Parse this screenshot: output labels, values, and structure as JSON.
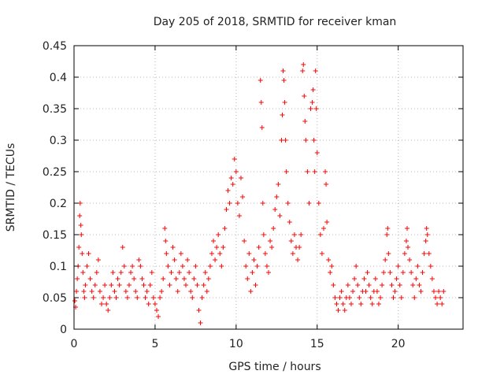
{
  "chart_data": {
    "type": "scatter",
    "title": "Day 205 of 2018, SRMTID for receiver kman",
    "xlabel": "GPS time / hours",
    "ylabel": "SRMTID / TECUs",
    "xlim": [
      0,
      24
    ],
    "ylim": [
      0,
      0.45
    ],
    "x_ticks": [
      0,
      5,
      10,
      15,
      20
    ],
    "x_tick_labels": [
      "0",
      "5",
      "10",
      "15",
      "20"
    ],
    "y_ticks": [
      0,
      0.05,
      0.1,
      0.15,
      0.2,
      0.25,
      0.3,
      0.35,
      0.4,
      0.45
    ],
    "y_tick_labels": [
      "0",
      "0.05",
      "0.1",
      "0.15",
      "0.2",
      "0.25",
      "0.3",
      "0.35",
      "0.4",
      "0.45"
    ],
    "grid": true,
    "marker": "+",
    "series": [
      {
        "name": "SRMTID",
        "color": "#ff0000",
        "points": [
          [
            0.05,
            0.045
          ],
          [
            0.1,
            0.035
          ],
          [
            0.15,
            0.06
          ],
          [
            0.2,
            0.08
          ],
          [
            0.25,
            0.1
          ],
          [
            0.3,
            0.13
          ],
          [
            0.35,
            0.18
          ],
          [
            0.38,
            0.2
          ],
          [
            0.42,
            0.165
          ],
          [
            0.45,
            0.15
          ],
          [
            0.5,
            0.12
          ],
          [
            0.55,
            0.09
          ],
          [
            0.6,
            0.06
          ],
          [
            0.65,
            0.05
          ],
          [
            0.7,
            0.07
          ],
          [
            0.8,
            0.1
          ],
          [
            0.9,
            0.12
          ],
          [
            1.0,
            0.08
          ],
          [
            1.1,
            0.06
          ],
          [
            1.2,
            0.05
          ],
          [
            1.3,
            0.07
          ],
          [
            1.4,
            0.09
          ],
          [
            1.5,
            0.11
          ],
          [
            1.6,
            0.06
          ],
          [
            1.7,
            0.04
          ],
          [
            1.8,
            0.05
          ],
          [
            1.9,
            0.07
          ],
          [
            2.0,
            0.04
          ],
          [
            2.1,
            0.03
          ],
          [
            2.2,
            0.05
          ],
          [
            2.3,
            0.07
          ],
          [
            2.4,
            0.09
          ],
          [
            2.5,
            0.06
          ],
          [
            2.6,
            0.05
          ],
          [
            2.7,
            0.08
          ],
          [
            2.8,
            0.07
          ],
          [
            2.9,
            0.09
          ],
          [
            3.0,
            0.13
          ],
          [
            3.1,
            0.1
          ],
          [
            3.2,
            0.06
          ],
          [
            3.3,
            0.05
          ],
          [
            3.4,
            0.07
          ],
          [
            3.5,
            0.09
          ],
          [
            3.6,
            0.1
          ],
          [
            3.7,
            0.08
          ],
          [
            3.8,
            0.06
          ],
          [
            3.9,
            0.05
          ],
          [
            4.0,
            0.11
          ],
          [
            4.1,
            0.1
          ],
          [
            4.2,
            0.08
          ],
          [
            4.3,
            0.07
          ],
          [
            4.4,
            0.05
          ],
          [
            4.5,
            0.06
          ],
          [
            4.6,
            0.04
          ],
          [
            4.7,
            0.07
          ],
          [
            4.8,
            0.09
          ],
          [
            4.9,
            0.05
          ],
          [
            5.0,
            0.04
          ],
          [
            5.1,
            0.03
          ],
          [
            5.2,
            0.02
          ],
          [
            5.3,
            0.05
          ],
          [
            5.4,
            0.06
          ],
          [
            5.5,
            0.08
          ],
          [
            5.6,
            0.16
          ],
          [
            5.65,
            0.14
          ],
          [
            5.7,
            0.12
          ],
          [
            5.8,
            0.1
          ],
          [
            5.9,
            0.07
          ],
          [
            6.0,
            0.09
          ],
          [
            6.1,
            0.13
          ],
          [
            6.2,
            0.11
          ],
          [
            6.3,
            0.08
          ],
          [
            6.4,
            0.06
          ],
          [
            6.5,
            0.09
          ],
          [
            6.6,
            0.12
          ],
          [
            6.7,
            0.1
          ],
          [
            6.8,
            0.08
          ],
          [
            6.9,
            0.07
          ],
          [
            7.0,
            0.11
          ],
          [
            7.1,
            0.09
          ],
          [
            7.2,
            0.06
          ],
          [
            7.3,
            0.05
          ],
          [
            7.4,
            0.08
          ],
          [
            7.5,
            0.1
          ],
          [
            7.6,
            0.07
          ],
          [
            7.7,
            0.03
          ],
          [
            7.8,
            0.01
          ],
          [
            7.9,
            0.05
          ],
          [
            8.0,
            0.07
          ],
          [
            8.1,
            0.09
          ],
          [
            8.2,
            0.06
          ],
          [
            8.3,
            0.08
          ],
          [
            8.4,
            0.1
          ],
          [
            8.5,
            0.12
          ],
          [
            8.6,
            0.14
          ],
          [
            8.7,
            0.11
          ],
          [
            8.8,
            0.13
          ],
          [
            8.9,
            0.15
          ],
          [
            9.0,
            0.12
          ],
          [
            9.1,
            0.1
          ],
          [
            9.2,
            0.13
          ],
          [
            9.3,
            0.16
          ],
          [
            9.4,
            0.19
          ],
          [
            9.5,
            0.22
          ],
          [
            9.6,
            0.2
          ],
          [
            9.7,
            0.24
          ],
          [
            9.8,
            0.23
          ],
          [
            9.9,
            0.27
          ],
          [
            10.0,
            0.25
          ],
          [
            10.1,
            0.2
          ],
          [
            10.2,
            0.18
          ],
          [
            10.3,
            0.24
          ],
          [
            10.4,
            0.21
          ],
          [
            10.5,
            0.14
          ],
          [
            10.6,
            0.1
          ],
          [
            10.7,
            0.08
          ],
          [
            10.8,
            0.12
          ],
          [
            10.9,
            0.06
          ],
          [
            11.0,
            0.09
          ],
          [
            11.1,
            0.11
          ],
          [
            11.2,
            0.07
          ],
          [
            11.3,
            0.1
          ],
          [
            11.4,
            0.13
          ],
          [
            11.5,
            0.395
          ],
          [
            11.55,
            0.36
          ],
          [
            11.6,
            0.32
          ],
          [
            11.65,
            0.2
          ],
          [
            11.7,
            0.15
          ],
          [
            11.8,
            0.12
          ],
          [
            11.9,
            0.1
          ],
          [
            12.0,
            0.09
          ],
          [
            12.1,
            0.14
          ],
          [
            12.2,
            0.13
          ],
          [
            12.3,
            0.16
          ],
          [
            12.4,
            0.19
          ],
          [
            12.5,
            0.21
          ],
          [
            12.6,
            0.23
          ],
          [
            12.7,
            0.18
          ],
          [
            12.8,
            0.3
          ],
          [
            12.85,
            0.34
          ],
          [
            12.9,
            0.41
          ],
          [
            12.95,
            0.395
          ],
          [
            13.0,
            0.36
          ],
          [
            13.05,
            0.3
          ],
          [
            13.1,
            0.25
          ],
          [
            13.2,
            0.2
          ],
          [
            13.3,
            0.17
          ],
          [
            13.4,
            0.14
          ],
          [
            13.5,
            0.12
          ],
          [
            13.6,
            0.15
          ],
          [
            13.7,
            0.13
          ],
          [
            13.8,
            0.11
          ],
          [
            13.9,
            0.13
          ],
          [
            14.0,
            0.15
          ],
          [
            14.1,
            0.41
          ],
          [
            14.15,
            0.42
          ],
          [
            14.2,
            0.37
          ],
          [
            14.25,
            0.33
          ],
          [
            14.3,
            0.3
          ],
          [
            14.4,
            0.25
          ],
          [
            14.5,
            0.2
          ],
          [
            14.6,
            0.35
          ],
          [
            14.7,
            0.36
          ],
          [
            14.75,
            0.38
          ],
          [
            14.8,
            0.3
          ],
          [
            14.85,
            0.25
          ],
          [
            14.9,
            0.41
          ],
          [
            14.95,
            0.35
          ],
          [
            15.0,
            0.28
          ],
          [
            15.1,
            0.2
          ],
          [
            15.2,
            0.15
          ],
          [
            15.3,
            0.12
          ],
          [
            15.4,
            0.16
          ],
          [
            15.5,
            0.25
          ],
          [
            15.55,
            0.23
          ],
          [
            15.6,
            0.17
          ],
          [
            15.7,
            0.11
          ],
          [
            15.8,
            0.09
          ],
          [
            15.9,
            0.1
          ],
          [
            16.0,
            0.07
          ],
          [
            16.1,
            0.05
          ],
          [
            16.2,
            0.04
          ],
          [
            16.3,
            0.03
          ],
          [
            16.4,
            0.05
          ],
          [
            16.5,
            0.06
          ],
          [
            16.6,
            0.04
          ],
          [
            16.7,
            0.03
          ],
          [
            16.8,
            0.05
          ],
          [
            16.9,
            0.07
          ],
          [
            17.0,
            0.05
          ],
          [
            17.1,
            0.04
          ],
          [
            17.2,
            0.06
          ],
          [
            17.3,
            0.08
          ],
          [
            17.4,
            0.1
          ],
          [
            17.5,
            0.07
          ],
          [
            17.6,
            0.05
          ],
          [
            17.7,
            0.04
          ],
          [
            17.8,
            0.06
          ],
          [
            17.9,
            0.08
          ],
          [
            18.0,
            0.06
          ],
          [
            18.1,
            0.09
          ],
          [
            18.2,
            0.07
          ],
          [
            18.3,
            0.05
          ],
          [
            18.4,
            0.04
          ],
          [
            18.5,
            0.06
          ],
          [
            18.6,
            0.08
          ],
          [
            18.7,
            0.06
          ],
          [
            18.8,
            0.04
          ],
          [
            18.9,
            0.05
          ],
          [
            19.0,
            0.07
          ],
          [
            19.1,
            0.09
          ],
          [
            19.2,
            0.11
          ],
          [
            19.3,
            0.15
          ],
          [
            19.35,
            0.16
          ],
          [
            19.4,
            0.12
          ],
          [
            19.5,
            0.09
          ],
          [
            19.6,
            0.07
          ],
          [
            19.7,
            0.05
          ],
          [
            19.8,
            0.06
          ],
          [
            19.9,
            0.08
          ],
          [
            20.0,
            0.1
          ],
          [
            20.1,
            0.07
          ],
          [
            20.2,
            0.05
          ],
          [
            20.3,
            0.09
          ],
          [
            20.4,
            0.12
          ],
          [
            20.5,
            0.14
          ],
          [
            20.55,
            0.16
          ],
          [
            20.6,
            0.13
          ],
          [
            20.7,
            0.11
          ],
          [
            20.8,
            0.09
          ],
          [
            20.9,
            0.07
          ],
          [
            21.0,
            0.05
          ],
          [
            21.1,
            0.08
          ],
          [
            21.2,
            0.1
          ],
          [
            21.3,
            0.07
          ],
          [
            21.4,
            0.06
          ],
          [
            21.5,
            0.09
          ],
          [
            21.6,
            0.12
          ],
          [
            21.7,
            0.14
          ],
          [
            21.75,
            0.16
          ],
          [
            21.8,
            0.15
          ],
          [
            21.9,
            0.12
          ],
          [
            22.0,
            0.1
          ],
          [
            22.1,
            0.08
          ],
          [
            22.2,
            0.06
          ],
          [
            22.3,
            0.05
          ],
          [
            22.4,
            0.04
          ],
          [
            22.5,
            0.06
          ],
          [
            22.6,
            0.05
          ],
          [
            22.7,
            0.04
          ],
          [
            22.8,
            0.06
          ]
        ]
      }
    ]
  }
}
